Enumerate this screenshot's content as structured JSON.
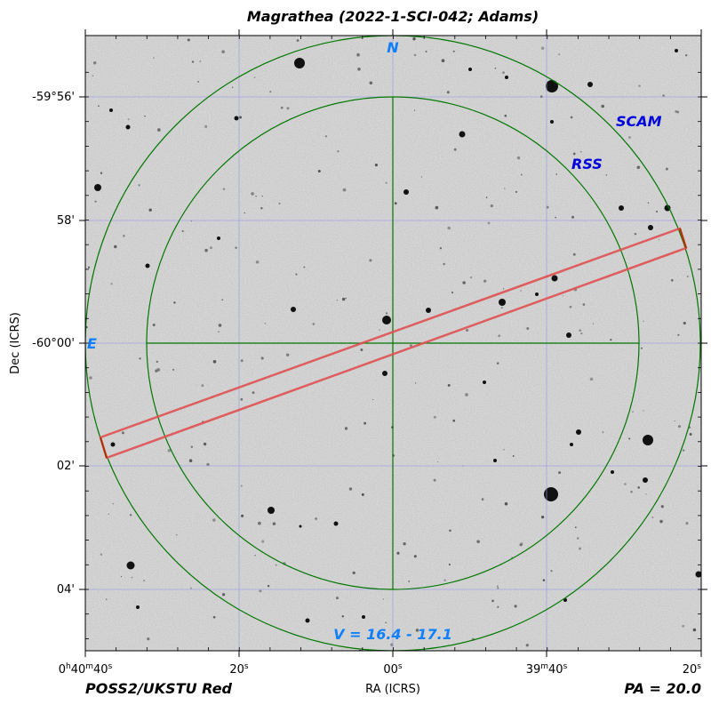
{
  "title": "Magrathea (2022-1-SCI-042; Adams)",
  "x_axis": {
    "label": "RA (ICRS)",
    "ticks": [
      {
        "h": "0",
        "m": "40",
        "s": "40",
        "kind": "hms"
      },
      {
        "s": "20",
        "kind": "s"
      },
      {
        "s": "00",
        "kind": "s"
      },
      {
        "m": "39",
        "s": "40",
        "kind": "ms"
      },
      {
        "s": "20",
        "kind": "s"
      }
    ]
  },
  "y_axis": {
    "label": "Dec (ICRS)",
    "ticks": [
      "-59°56'",
      "58'",
      "-60°00'",
      "02'",
      "04'"
    ]
  },
  "labels": {
    "north": "N",
    "east": "E",
    "scam": "SCAM",
    "rss": "RSS",
    "magnitude_range": "V = 16.4 - 17.1",
    "survey": "POSS2/UKSTU Red",
    "position_angle": "PA = 20.0"
  },
  "colors": {
    "fov_circles": "#007700",
    "slit": "#e05050",
    "slit_end": "#aa3300",
    "grid": "#9999ee",
    "label_blue": "#0d7fff",
    "label_darkblue": "#0000dd"
  }
}
